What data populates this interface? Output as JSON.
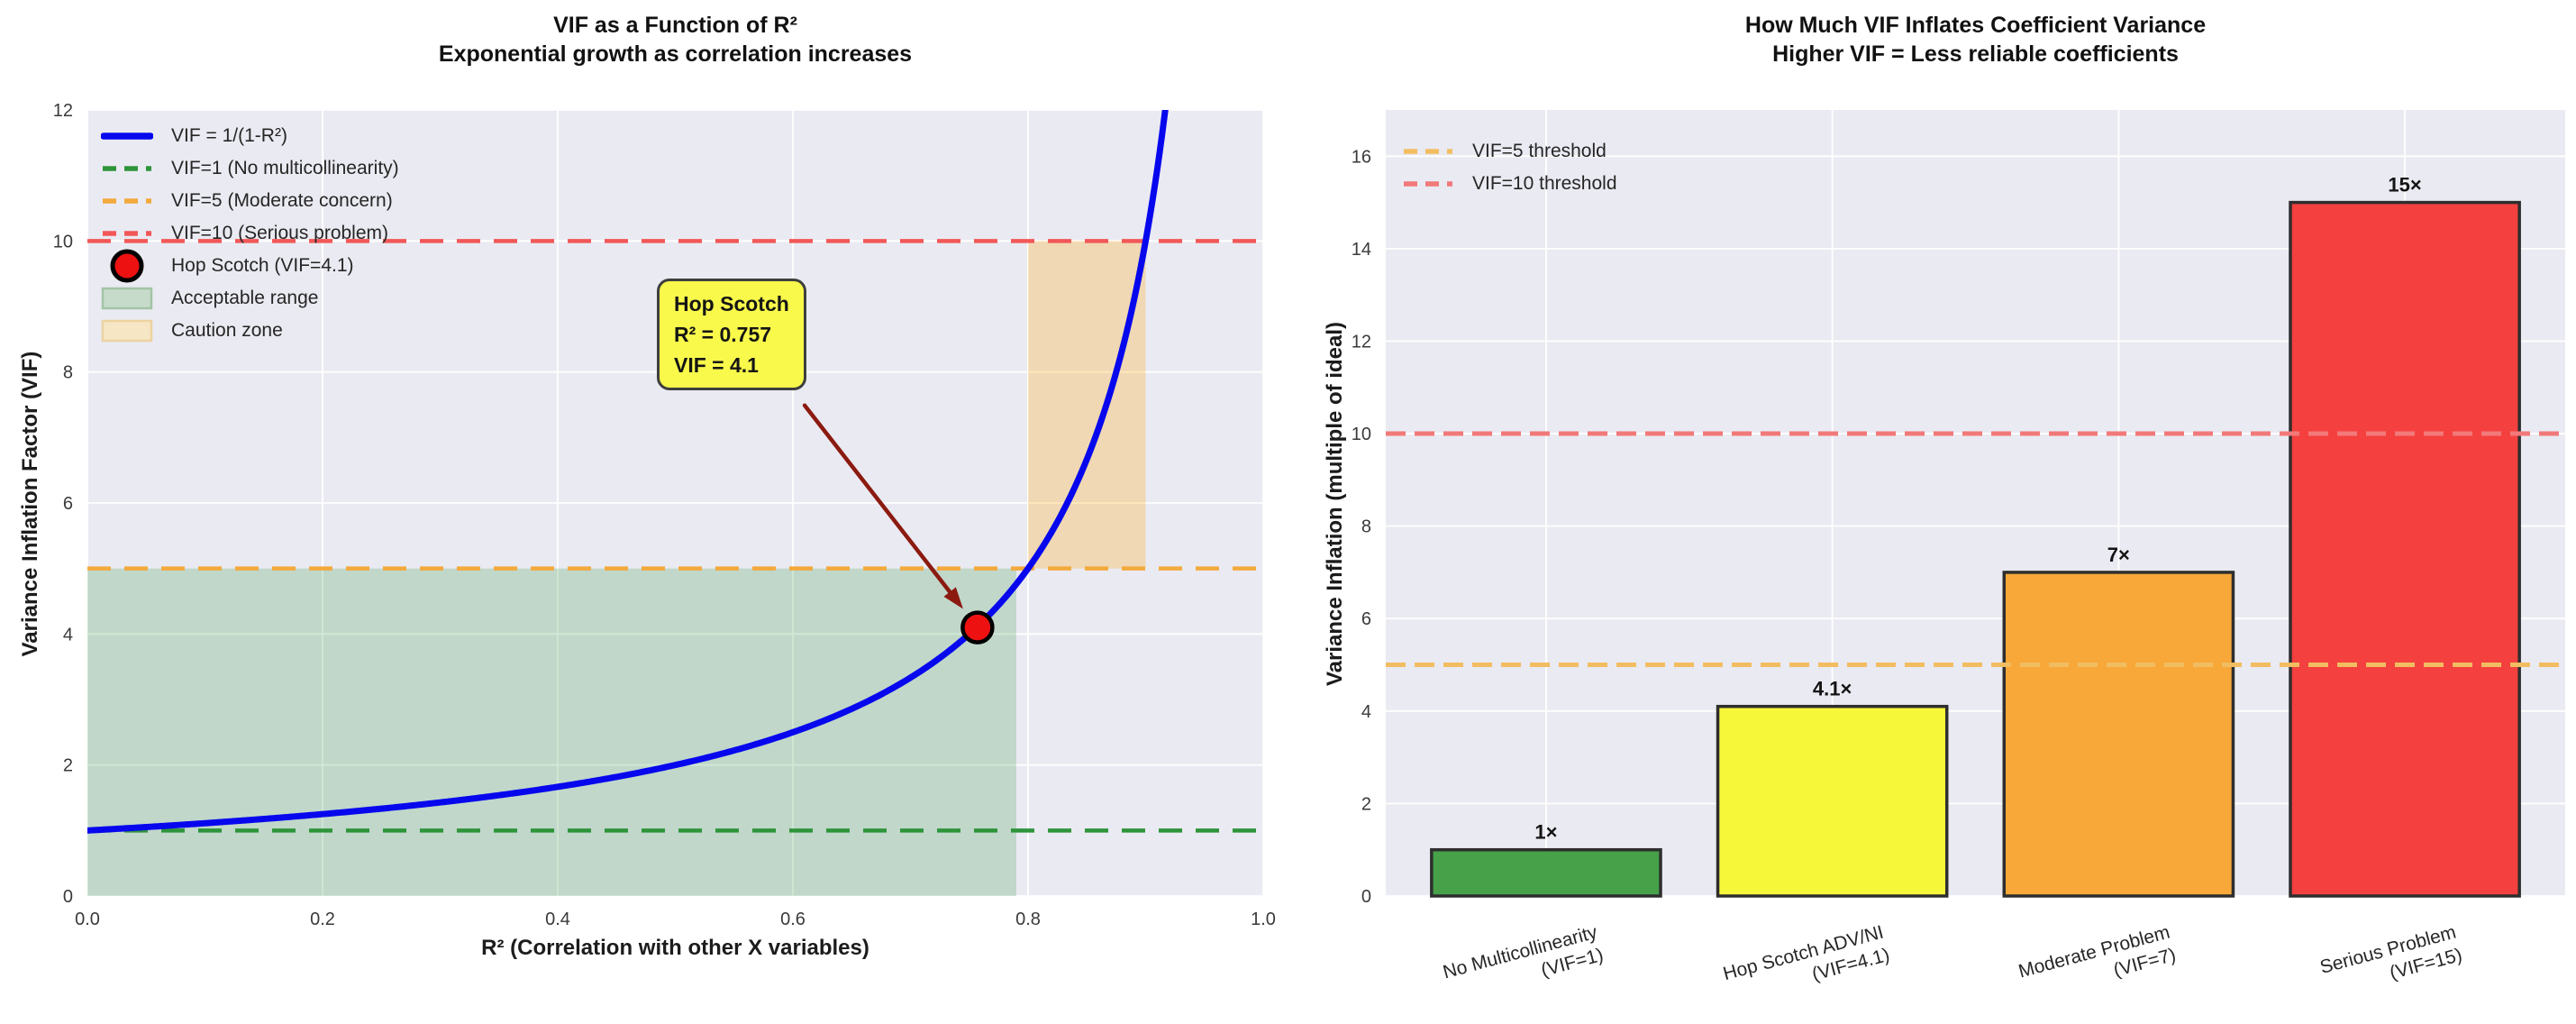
{
  "chart_data": [
    {
      "type": "line",
      "title": "VIF as a Function of R²",
      "subtitle": "Exponential growth as correlation increases",
      "xlabel": "R² (Correlation with other X variables)",
      "ylabel": "Variance Inflation Factor (VIF)",
      "xlim": [
        0.0,
        1.0
      ],
      "ylim": [
        0,
        12
      ],
      "xticks": [
        0.0,
        0.2,
        0.4,
        0.6,
        0.8,
        1.0
      ],
      "xtick_labels": [
        "0.0",
        "0.2",
        "0.4",
        "0.6",
        "0.8",
        "1.0"
      ],
      "yticks": [
        0,
        2,
        4,
        6,
        8,
        10,
        12
      ],
      "grid": true,
      "background": "#eaeaf2",
      "grid_color": "#ffffff",
      "curve": {
        "label": "VIF = 1/(1-R²)",
        "formula": "VIF = 1 / (1 - R²)",
        "color": "#0707ee",
        "x_start": 0.0,
        "x_end": 0.9999,
        "clip_ymax": 13
      },
      "thresholds": [
        {
          "y": 1,
          "label": "VIF=1 (No multicollinearity)",
          "color": "#2e943a"
        },
        {
          "y": 5,
          "label": "VIF=5 (Moderate concern)",
          "color": "#f3a93c"
        },
        {
          "y": 10,
          "label": "VIF=10 (Serious problem)",
          "color": "#f25757"
        }
      ],
      "regions": [
        {
          "label": "Acceptable range",
          "x0": 0.0,
          "x1": 0.79,
          "y0": 0,
          "y1": 5,
          "color": "#2e943a",
          "opacity": 0.22
        },
        {
          "label": "Caution zone",
          "x0": 0.8,
          "x1": 0.9,
          "y0": 5,
          "y1": 10,
          "color": "#ffa500",
          "opacity": 0.26
        }
      ],
      "highlight_point": {
        "x": 0.757,
        "y": 4.1,
        "label": "Hop Scotch (VIF=4.1)",
        "color": "#ee1111",
        "edge_color": "#000000"
      },
      "annotation": {
        "line1": "Hop Scotch",
        "line2": "R² = 0.757",
        "line3": "VIF = 4.1",
        "target_xy": [
          0.757,
          4.1
        ],
        "arrow_start_xy": [
          0.61,
          7.49
        ],
        "box_color": "#f9f94b",
        "border_color": "#3f3f3f",
        "arrow_color": "#8b1a10"
      },
      "legend": [
        {
          "type": "line",
          "color": "#0707ee",
          "label": "VIF = 1/(1-R²)"
        },
        {
          "type": "dash",
          "color": "#2e943a",
          "label": "VIF=1 (No multicollinearity)"
        },
        {
          "type": "dash",
          "color": "#f3a93c",
          "label": "VIF=5 (Moderate concern)"
        },
        {
          "type": "dash",
          "color": "#f25757",
          "label": "VIF=10 (Serious problem)"
        },
        {
          "type": "dot",
          "color": "#ee1111",
          "label": "Hop Scotch (VIF=4.1)"
        },
        {
          "type": "patch",
          "color": "#c6dbc9",
          "edge": "#a3c4a6",
          "label": "Acceptable range"
        },
        {
          "type": "patch",
          "color": "#f6e6c4",
          "edge": "#ecd3a0",
          "label": "Caution zone"
        }
      ]
    },
    {
      "type": "bar",
      "title": "How Much VIF Inflates Coefficient Variance",
      "subtitle": "Higher VIF = Less reliable coefficients",
      "ylabel": "Variance Inflation (multiple of ideal)",
      "categories": [
        [
          "No Multicollinearity",
          "(VIF=1)"
        ],
        [
          "Hop Scotch ADV/NI",
          "(VIF=4.1)"
        ],
        [
          "Moderate Problem",
          "(VIF=7)"
        ],
        [
          "Serious Problem",
          "(VIF=15)"
        ]
      ],
      "values": [
        1,
        4.1,
        7,
        15
      ],
      "bar_labels": [
        "1×",
        "4.1×",
        "7×",
        "15×"
      ],
      "bar_colors": [
        "#46a149",
        "#f7f73a",
        "#f7a839",
        "#f4403e"
      ],
      "bar_edge_color": "#2e2e2e",
      "ylim": [
        0,
        17
      ],
      "yticks": [
        0,
        2,
        4,
        6,
        8,
        10,
        12,
        14,
        16
      ],
      "grid": true,
      "background": "#eaeaf2",
      "grid_color": "#ffffff",
      "thresholds": [
        {
          "y": 5,
          "label": "VIF=5 threshold",
          "color": "#f2bd61"
        },
        {
          "y": 10,
          "label": "VIF=10 threshold",
          "color": "#f27979"
        }
      ],
      "legend": [
        {
          "type": "dash",
          "color": "#f2bd61",
          "label": "VIF=5 threshold"
        },
        {
          "type": "dash",
          "color": "#f27979",
          "label": "VIF=10 threshold"
        }
      ]
    }
  ]
}
